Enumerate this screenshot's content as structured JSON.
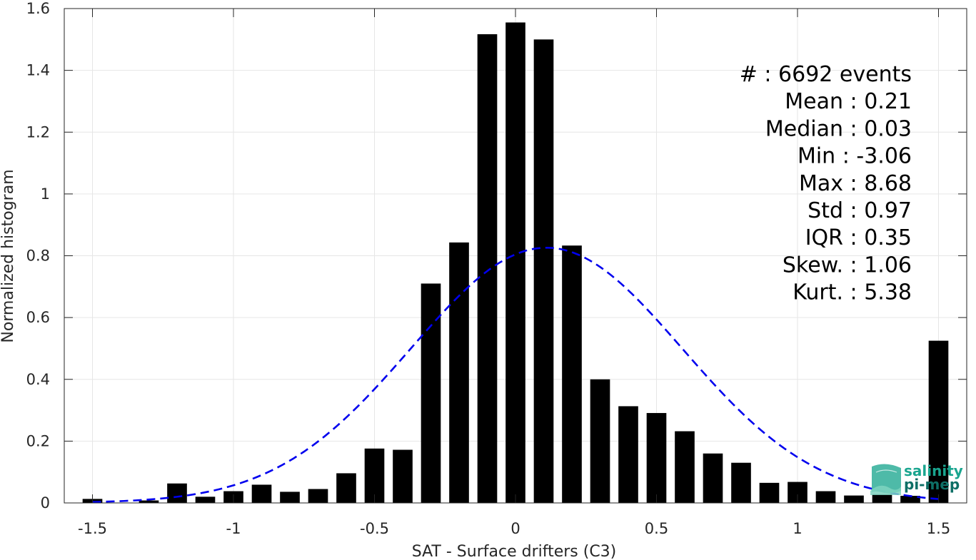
{
  "chart_data": {
    "type": "bar",
    "xlabel": "SAT - Surface drifters (C3)",
    "ylabel": "Normalized histogram",
    "xlim": [
      -1.6,
      1.6
    ],
    "ylim": [
      0,
      1.6
    ],
    "grid": true,
    "x_ticks": [
      -1.5,
      -1,
      -0.5,
      0,
      0.5,
      1,
      1.5
    ],
    "x_tick_labels": [
      "-1.5",
      "-1",
      "-0.5",
      "0",
      "0.5",
      "1",
      "1.5"
    ],
    "y_ticks": [
      0,
      0.2,
      0.4,
      0.6,
      0.8,
      1,
      1.2,
      1.4,
      1.6
    ],
    "y_tick_labels": [
      "0",
      "0.2",
      "0.4",
      "0.6",
      "0.8",
      "1",
      "1.2",
      "1.4",
      "1.6"
    ],
    "bar_width": 0.07,
    "x": [
      -1.5,
      -1.4,
      -1.3,
      -1.2,
      -1.1,
      -1.0,
      -0.9,
      -0.8,
      -0.7,
      -0.6,
      -0.5,
      -0.4,
      -0.3,
      -0.2,
      -0.1,
      0.0,
      0.1,
      0.2,
      0.3,
      0.4,
      0.5,
      0.6,
      0.7,
      0.8,
      0.9,
      1.0,
      1.1,
      1.2,
      1.3,
      1.4,
      1.5
    ],
    "values": [
      0.013,
      0.0,
      0.008,
      0.063,
      0.02,
      0.038,
      0.059,
      0.036,
      0.045,
      0.096,
      0.176,
      0.172,
      0.71,
      0.843,
      1.517,
      1.555,
      1.5,
      0.833,
      0.4,
      0.313,
      0.291,
      0.232,
      0.16,
      0.13,
      0.065,
      0.068,
      0.038,
      0.024,
      0.028,
      0.023,
      0.525
    ],
    "bar_color": "#000000",
    "fit_curve": {
      "style": "dashed",
      "color": "#0000ee",
      "mean": 0.11,
      "sigma": 0.48,
      "peak": 0.826,
      "x_range": [
        -1.5,
        1.5
      ]
    },
    "stats": [
      "#  : 6692 events",
      "Mean : 0.21",
      "Median : 0.03",
      "Min : -3.06",
      "Max : 8.68",
      "Std : 0.97",
      "IQR : 0.35",
      "Skew. : 1.06",
      "Kurt. : 5.38"
    ]
  },
  "logo": {
    "line1": "salinity",
    "line2": "pi-mep",
    "color": "#1aa58f",
    "dark_color": "#0e6f66"
  }
}
